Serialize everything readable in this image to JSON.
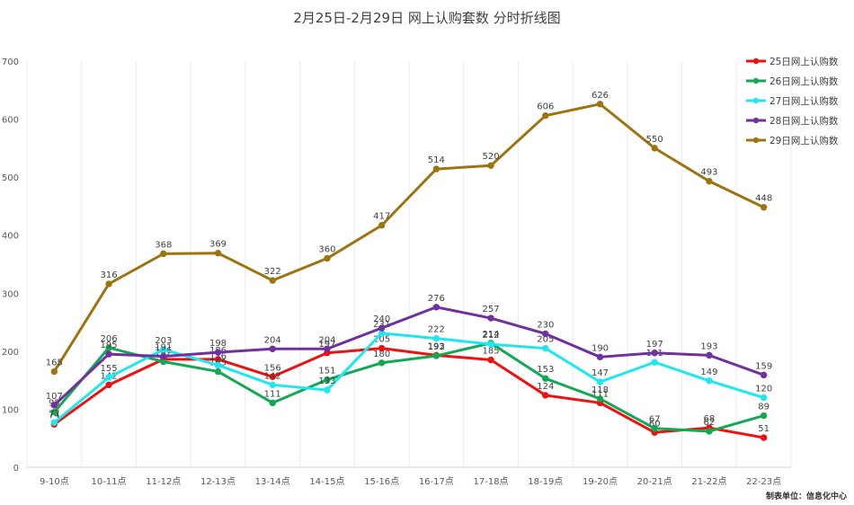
{
  "chart_data": {
    "type": "line",
    "title": "2月25日-2月29日 网上认购套数 分时折线图",
    "footer": "制表单位：信息化中心",
    "xlabel": "",
    "ylabel": "",
    "ylim": [
      0,
      700
    ],
    "yticks": [
      0,
      100,
      200,
      300,
      400,
      500,
      600,
      700
    ],
    "grid": "vertical",
    "legend_position": "top-right",
    "categories": [
      "9-10点",
      "10-11点",
      "11-12点",
      "12-13点",
      "13-14点",
      "14-15点",
      "15-16点",
      "16-17点",
      "17-18点",
      "18-19点",
      "19-20点",
      "20-21点",
      "21-22点",
      "22-23点"
    ],
    "series": [
      {
        "name": "25日网上认购数",
        "color": "#ee1111",
        "values": [
          74,
          142,
          186,
          186,
          156,
          197,
          205,
          193,
          185,
          124,
          111,
          60,
          68,
          51
        ]
      },
      {
        "name": "26日网上认购数",
        "color": "#13a853",
        "values": [
          95,
          206,
          182,
          165,
          111,
          151,
          180,
          192,
          214,
          153,
          118,
          67,
          62,
          89
        ]
      },
      {
        "name": "27日网上认购数",
        "color": "#1ee8ee",
        "values": [
          77,
          155,
          203,
          176,
          142,
          133,
          231,
          222,
          212,
          205,
          147,
          181,
          149,
          120
        ]
      },
      {
        "name": "28日网上认购数",
        "color": "#7030a0",
        "values": [
          107,
          195,
          191,
          198,
          204,
          204,
          240,
          276,
          257,
          230,
          190,
          197,
          193,
          159
        ]
      },
      {
        "name": "29日网上认购数",
        "color": "#9c7510",
        "values": [
          165,
          316,
          368,
          369,
          322,
          360,
          417,
          514,
          520,
          606,
          626,
          550,
          493,
          448
        ]
      }
    ]
  }
}
